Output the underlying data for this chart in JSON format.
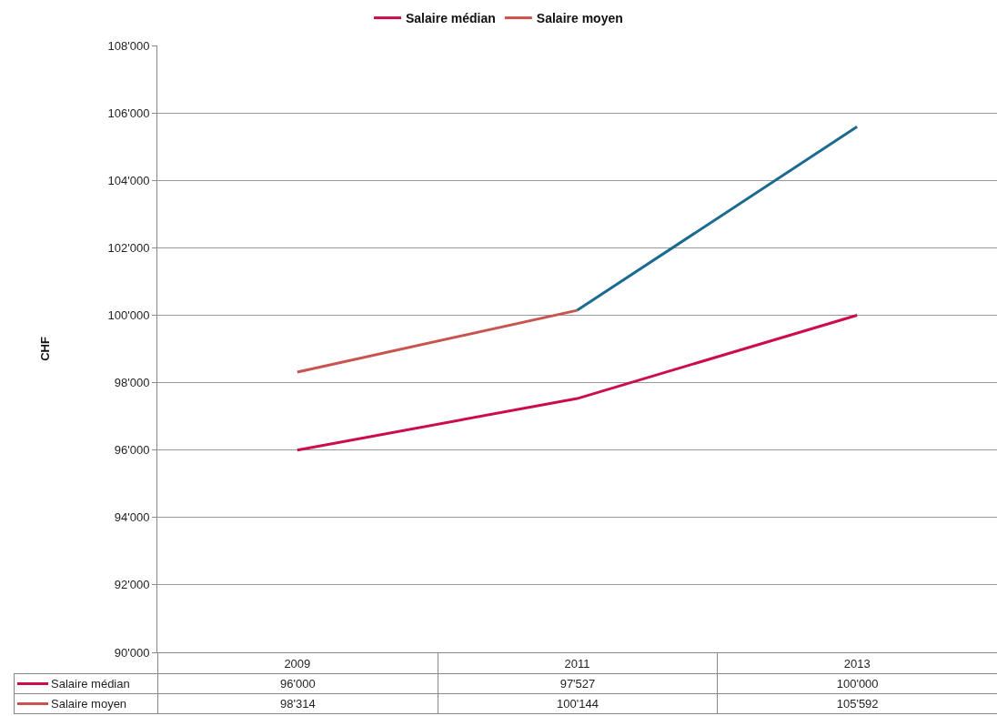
{
  "chart_data": {
    "type": "line",
    "ylabel": "CHF",
    "categories": [
      "2009",
      "2011",
      "2013"
    ],
    "series": [
      {
        "name": "Salaire médian",
        "color": "#cc0c4f",
        "values": [
          96000,
          97527,
          100000
        ],
        "value_labels": [
          "96'000",
          "97'527",
          "100'000"
        ]
      },
      {
        "name": "Salaire moyen",
        "color": "#c9534f",
        "values": [
          98314,
          100144,
          null
        ],
        "value_labels": [
          "98'314",
          "100'144",
          "105'592"
        ]
      },
      {
        "color": "#1b6a8f",
        "values": [
          null,
          100144,
          105592
        ]
      }
    ],
    "ylim": [
      90000,
      108000
    ],
    "yticks": [
      {
        "value": 90000,
        "label": "90'000"
      },
      {
        "value": 92000,
        "label": "92'000"
      },
      {
        "value": 94000,
        "label": "94'000"
      },
      {
        "value": 96000,
        "label": "96'000"
      },
      {
        "value": 98000,
        "label": "98'000"
      },
      {
        "value": 100000,
        "label": "100'000"
      },
      {
        "value": 102000,
        "label": "102'000"
      },
      {
        "value": 104000,
        "label": "104'000"
      },
      {
        "value": 106000,
        "label": "106'000"
      },
      {
        "value": 108000,
        "label": "108'000"
      }
    ],
    "grid": "y",
    "legend": "top",
    "marker": "none",
    "line_style": "solid"
  }
}
